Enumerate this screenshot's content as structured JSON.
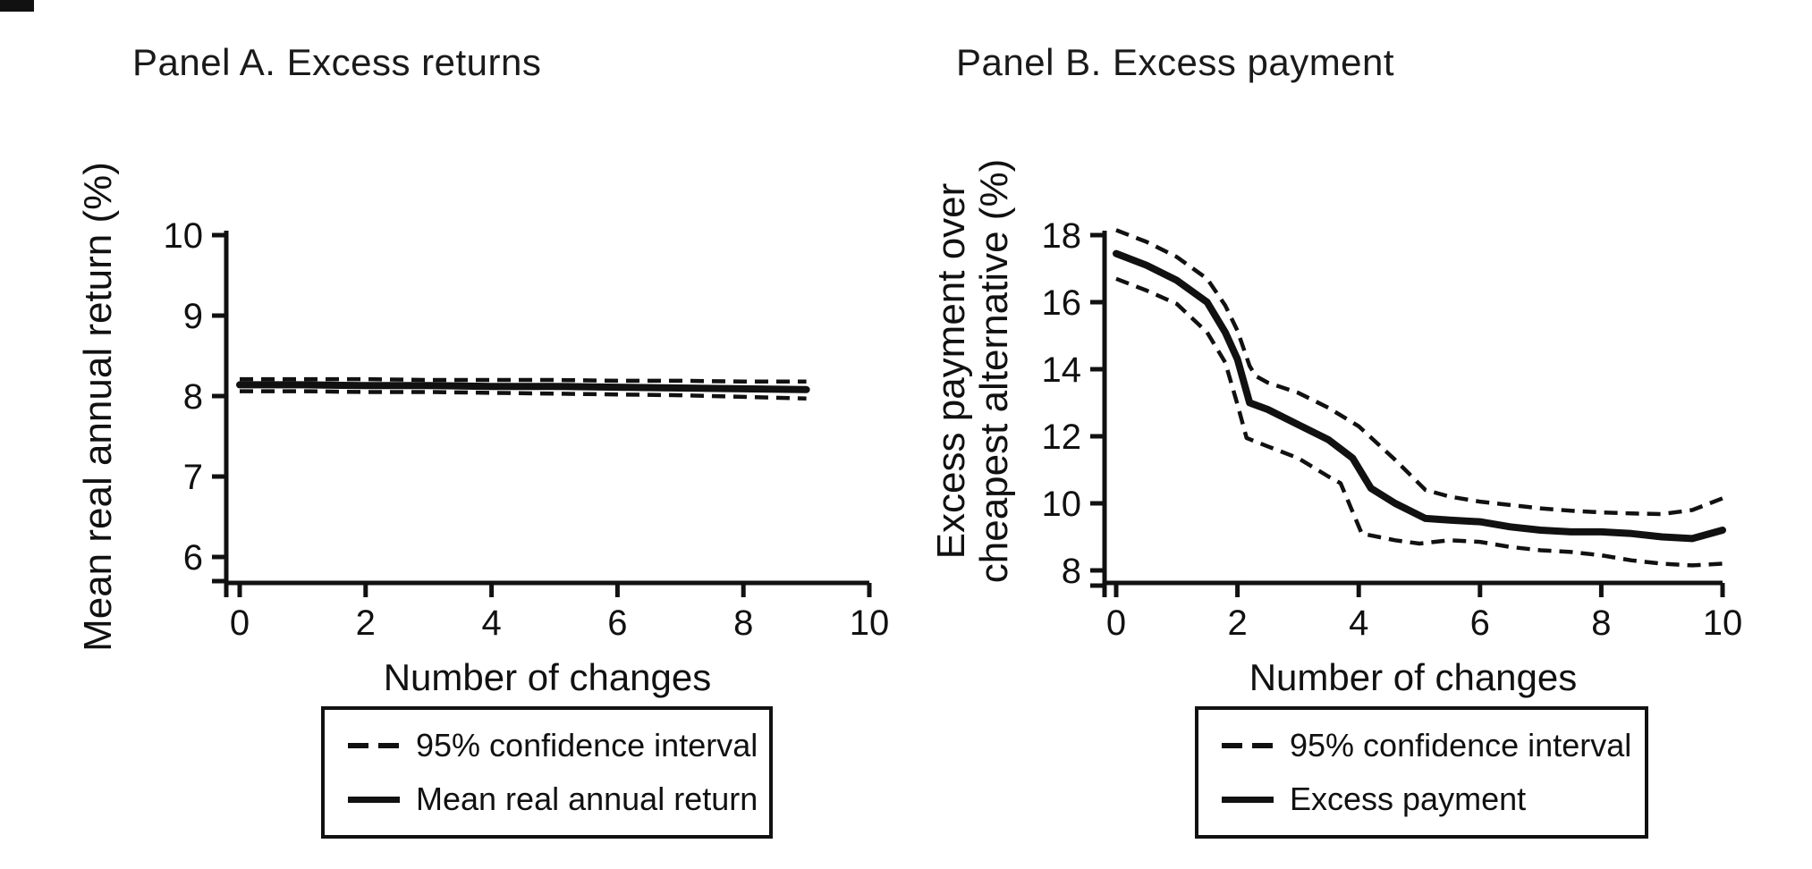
{
  "page": {
    "background": "#ffffff",
    "line_color": "#111111",
    "has_corner_mark": true
  },
  "panels": [
    {
      "title": "Panel A. Excess returns",
      "y_axis_label_lines": [
        "Mean real annual return (%)"
      ],
      "x_axis_label": "Number of changes",
      "legend": [
        {
          "style": "dashed",
          "label": "95% confidence interval"
        },
        {
          "style": "solid",
          "label": "Mean real annual return"
        }
      ]
    },
    {
      "title": "Panel B. Excess payment",
      "y_axis_label_lines": [
        "Excess payment over",
        "cheapest alternative (%)"
      ],
      "x_axis_label": "Number of changes",
      "legend": [
        {
          "style": "dashed",
          "label": "95% confidence interval"
        },
        {
          "style": "solid",
          "label": "Excess payment"
        }
      ]
    }
  ],
  "chart_data": [
    {
      "type": "line",
      "title": "Panel A. Excess returns",
      "xlabel": "Number of changes",
      "ylabel": "Mean real annual return (%)",
      "xlim": [
        0,
        10
      ],
      "ylim": [
        5.7,
        10
      ],
      "x_ticks": [
        0,
        2,
        4,
        6,
        8,
        10
      ],
      "y_ticks": [
        6,
        7,
        8,
        9,
        10
      ],
      "grid": false,
      "legend_position": "below",
      "series": [
        {
          "name": "95% confidence interval (upper)",
          "style": "dashed",
          "x": [
            0,
            1,
            2,
            3,
            4,
            5,
            6,
            7,
            8,
            9
          ],
          "y": [
            8.21,
            8.21,
            8.21,
            8.2,
            8.2,
            8.2,
            8.19,
            8.19,
            8.18,
            8.18
          ]
        },
        {
          "name": "95% confidence interval (lower)",
          "style": "dashed",
          "x": [
            0,
            1,
            2,
            3,
            4,
            5,
            6,
            7,
            8,
            9
          ],
          "y": [
            8.06,
            8.06,
            8.05,
            8.05,
            8.04,
            8.03,
            8.02,
            8.01,
            7.99,
            7.97
          ]
        },
        {
          "name": "Mean real annual return",
          "style": "solid",
          "x": [
            0,
            1,
            2,
            3,
            4,
            5,
            6,
            7,
            8,
            9
          ],
          "y": [
            8.14,
            8.14,
            8.13,
            8.13,
            8.12,
            8.12,
            8.11,
            8.1,
            8.09,
            8.08
          ]
        }
      ]
    },
    {
      "type": "line",
      "title": "Panel B. Excess payment",
      "xlabel": "Number of changes",
      "ylabel": "Excess payment over cheapest alternative (%)",
      "xlim": [
        0,
        10
      ],
      "ylim": [
        7.6,
        18.3
      ],
      "x_ticks": [
        0,
        2,
        4,
        6,
        8,
        10
      ],
      "y_ticks": [
        8,
        10,
        12,
        14,
        16,
        18
      ],
      "grid": false,
      "legend_position": "below",
      "series": [
        {
          "name": "95% confidence interval (upper)",
          "style": "dashed",
          "x": [
            0,
            0.5,
            1,
            1.5,
            1.8,
            2,
            2.2,
            2.3,
            2.5,
            3,
            3.5,
            4,
            4.3,
            4.6,
            5.1,
            5.5,
            6,
            6.5,
            7,
            7.5,
            8,
            8.5,
            9,
            9.5,
            10
          ],
          "y": [
            18.15,
            17.8,
            17.35,
            16.7,
            15.9,
            15.15,
            14.1,
            13.8,
            13.6,
            13.3,
            12.85,
            12.3,
            11.8,
            11.3,
            10.4,
            10.2,
            10.05,
            9.95,
            9.85,
            9.78,
            9.73,
            9.7,
            9.68,
            9.8,
            10.15
          ]
        },
        {
          "name": "95% confidence interval (lower)",
          "style": "dashed",
          "x": [
            0,
            0.5,
            1,
            1.5,
            1.8,
            2,
            2.15,
            2.5,
            3,
            3.5,
            3.7,
            4.05,
            4.6,
            5,
            5.5,
            6,
            6.5,
            7,
            7.5,
            8,
            8.5,
            9,
            9.5,
            10
          ],
          "y": [
            16.7,
            16.35,
            15.95,
            15.1,
            14.2,
            12.95,
            11.95,
            11.7,
            11.35,
            10.8,
            10.6,
            9.1,
            8.9,
            8.8,
            8.9,
            8.85,
            8.7,
            8.6,
            8.55,
            8.45,
            8.3,
            8.2,
            8.15,
            8.2
          ]
        },
        {
          "name": "Excess payment",
          "style": "solid",
          "x": [
            0,
            0.5,
            1,
            1.5,
            1.8,
            2,
            2.2,
            2.5,
            3,
            3.5,
            3.9,
            4.2,
            4.6,
            5.1,
            5.5,
            6,
            6.5,
            7,
            7.5,
            8,
            8.5,
            9,
            9.5,
            10
          ],
          "y": [
            17.45,
            17.1,
            16.65,
            16.0,
            15.1,
            14.3,
            13.0,
            12.8,
            12.35,
            11.9,
            11.35,
            10.45,
            10.0,
            9.55,
            9.5,
            9.45,
            9.3,
            9.2,
            9.15,
            9.15,
            9.1,
            9.0,
            8.95,
            9.2
          ]
        }
      ]
    }
  ]
}
